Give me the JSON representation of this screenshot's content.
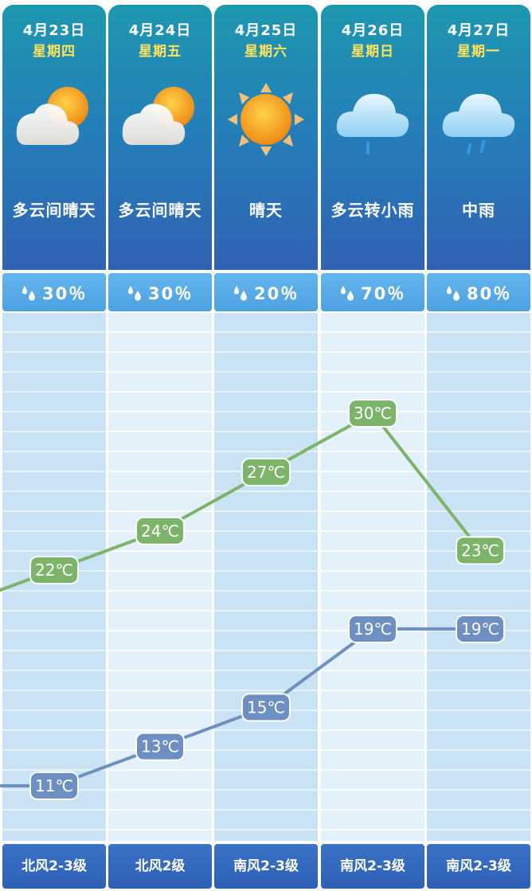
{
  "days": [
    {
      "date": "4月23日",
      "weekday": "星期四",
      "icon": "partly-cloudy-icon",
      "desc": "多云间晴天",
      "precip": "30％",
      "wind": "北风2-3级"
    },
    {
      "date": "4月24日",
      "weekday": "星期五",
      "icon": "partly-cloudy-icon",
      "desc": "多云间晴天",
      "precip": "30％",
      "wind": "北风2级"
    },
    {
      "date": "4月25日",
      "weekday": "星期六",
      "icon": "sunny-icon",
      "desc": "晴天",
      "precip": "20％",
      "wind": "南风2-3级"
    },
    {
      "date": "4月26日",
      "weekday": "星期日",
      "icon": "light-rain-icon",
      "desc": "多云转小雨",
      "precip": "70％",
      "wind": "南风2-3级"
    },
    {
      "date": "4月27日",
      "weekday": "星期一",
      "icon": "moderate-rain-icon",
      "desc": "中雨",
      "precip": "80％",
      "wind": "南风2-3级"
    }
  ],
  "colors": {
    "header_top": "#1e98b0",
    "header_bottom": "#3162b4",
    "weekday_text": "#ffe35a",
    "precip_bar": "#5aaee8",
    "high_line": "#7cb46a",
    "low_line": "#6d8fc2",
    "wind_bar": "#3468bc"
  },
  "chart_data": {
    "type": "line",
    "categories": [
      "4月23日",
      "4月24日",
      "4月25日",
      "4月26日",
      "4月27日"
    ],
    "unit": "℃",
    "series": [
      {
        "key": "high",
        "values": [
          22,
          24,
          27,
          30,
          23
        ],
        "labels": [
          "22℃",
          "24℃",
          "27℃",
          "30℃",
          "23℃"
        ],
        "prev_trend": 20
      },
      {
        "key": "low",
        "values": [
          11,
          13,
          15,
          19,
          19
        ],
        "labels": [
          "11℃",
          "13℃",
          "15℃",
          "19℃",
          "19℃"
        ],
        "prev_trend": 11
      }
    ],
    "ylim": [
      8,
      34
    ],
    "grid": true,
    "legend": "none"
  }
}
